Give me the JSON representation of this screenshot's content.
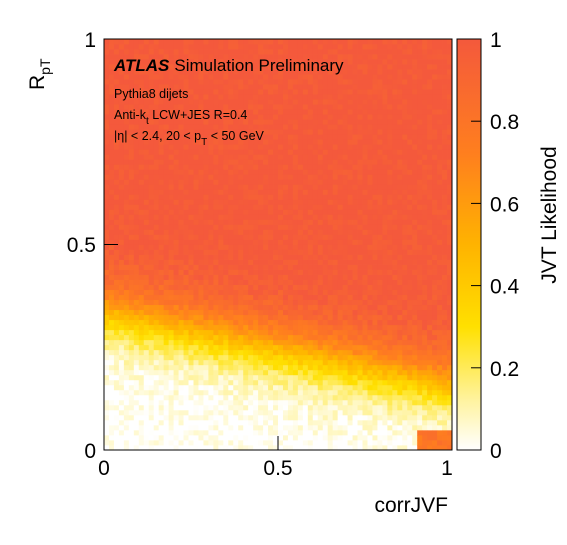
{
  "chart_data": {
    "type": "heatmap",
    "title": "",
    "xlabel": "corrJVF",
    "ylabel": "R",
    "ylabel_sub": "pT",
    "colorbar_label": "JVT Likelihood",
    "xlim": [
      0,
      1
    ],
    "ylim": [
      0,
      1
    ],
    "zlim": [
      0,
      1
    ],
    "x_ticks": [
      "0",
      "0.5",
      "1"
    ],
    "y_ticks": [
      "0",
      "0.5",
      "1"
    ],
    "z_ticks": [
      "0",
      "0.2",
      "0.4",
      "0.6",
      "0.8",
      "1"
    ],
    "grid": false,
    "colormap": [
      "#ffffff",
      "#fff3a0",
      "#ffe000",
      "#ffb300",
      "#ff7f1e",
      "#f4593c"
    ],
    "annotations": {
      "atlas": "ATLAS",
      "atlas_rest": "Simulation Preliminary",
      "line1": "Pythia8 dijets",
      "line2_a": "Anti-k",
      "line2_sub": "t",
      "line2_b": " LCW+JES R=0.4",
      "line3_a": "|η| < 2.4, 20 < p",
      "line3_sub": "T",
      "line3_b": " < 50 GeV"
    },
    "z_model": "Likelihood near 1 (red) for most of the plane; falls to ~0 (white) at low RpT, lowest at small corrJVF; yellow transition band around RpT 0.2-0.35"
  }
}
